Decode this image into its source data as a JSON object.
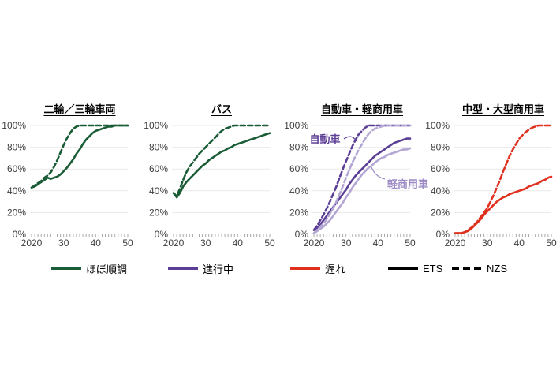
{
  "page": {
    "background": "#ffffff"
  },
  "colors": {
    "on_track_green": "#1a5c36",
    "in_progress_purple": "#5b3f96",
    "light_purple": "#b3a6d3",
    "delayed_red": "#e0301e",
    "ets_black": "#000000",
    "grid_gray": "#e9e9e9",
    "tick_gray": "#a8a8a8",
    "axis_text": "#3d3d3d"
  },
  "chart_data": [
    {
      "type": "line",
      "title": "二輪／三輪車両",
      "status": "ほぼ順調",
      "ylim": [
        0,
        100
      ],
      "grid": true,
      "y_ticks": [
        "0%",
        "20%",
        "40%",
        "60%",
        "80%",
        "100%"
      ],
      "x_ticks": [
        "2020",
        "30",
        "40",
        "50"
      ],
      "x": [
        2020,
        2021,
        2022,
        2023,
        2024,
        2025,
        2026,
        2027,
        2028,
        2029,
        2030,
        2031,
        2032,
        2033,
        2034,
        2035,
        2036,
        2037,
        2038,
        2039,
        2040,
        2041,
        2042,
        2043,
        2044,
        2045,
        2046,
        2047,
        2048,
        2049,
        2050
      ],
      "series": [
        {
          "name": "ETS",
          "style": "solid",
          "color": "#1a5c36",
          "values": [
            43,
            44,
            46,
            48,
            50,
            52,
            51,
            52,
            53,
            55,
            58,
            61,
            65,
            69,
            74,
            78,
            83,
            87,
            90,
            93,
            95,
            96,
            97,
            98,
            99,
            99,
            100,
            100,
            100,
            100,
            100
          ]
        },
        {
          "name": "NZS",
          "style": "dashed",
          "color": "#1a5c36",
          "values": [
            43,
            45,
            47,
            49,
            52,
            54,
            57,
            62,
            68,
            75,
            82,
            88,
            93,
            97,
            99,
            100,
            100,
            100,
            100,
            100,
            100,
            100,
            100,
            100,
            100,
            100,
            100,
            100,
            100,
            100,
            100
          ]
        }
      ]
    },
    {
      "type": "line",
      "title": "バス",
      "status": "ほぼ順調",
      "ylim": [
        0,
        100
      ],
      "grid": true,
      "y_ticks": [
        "0%",
        "20%",
        "40%",
        "60%",
        "80%",
        "100%"
      ],
      "x_ticks": [
        "2020",
        "30",
        "40",
        "50"
      ],
      "x": [
        2020,
        2021,
        2022,
        2023,
        2024,
        2025,
        2026,
        2027,
        2028,
        2029,
        2030,
        2031,
        2032,
        2033,
        2034,
        2035,
        2036,
        2037,
        2038,
        2039,
        2040,
        2041,
        2042,
        2043,
        2044,
        2045,
        2046,
        2047,
        2048,
        2049,
        2050
      ],
      "series": [
        {
          "name": "ETS",
          "style": "solid",
          "color": "#1a5c36",
          "values": [
            38,
            34,
            38,
            44,
            48,
            51,
            54,
            57,
            60,
            63,
            65,
            68,
            70,
            72,
            74,
            76,
            77,
            79,
            80,
            82,
            83,
            84,
            85,
            86,
            87,
            88,
            89,
            90,
            91,
            92,
            93
          ]
        },
        {
          "name": "NZS",
          "style": "dashed",
          "color": "#1a5c36",
          "values": [
            38,
            35,
            42,
            50,
            57,
            62,
            66,
            70,
            74,
            77,
            80,
            83,
            86,
            89,
            92,
            95,
            97,
            98,
            99,
            100,
            100,
            100,
            100,
            100,
            100,
            100,
            100,
            100,
            100,
            100,
            100
          ]
        }
      ]
    },
    {
      "type": "line",
      "title": "自動車・軽商用車",
      "status": "進行中",
      "ylim": [
        0,
        100
      ],
      "grid": true,
      "y_ticks": [
        "0%",
        "20%",
        "40%",
        "60%",
        "80%",
        "100%"
      ],
      "x_ticks": [
        "2020",
        "30",
        "40",
        "50"
      ],
      "x": [
        2020,
        2021,
        2022,
        2023,
        2024,
        2025,
        2026,
        2027,
        2028,
        2029,
        2030,
        2031,
        2032,
        2033,
        2034,
        2035,
        2036,
        2037,
        2038,
        2039,
        2040,
        2041,
        2042,
        2043,
        2044,
        2045,
        2046,
        2047,
        2048,
        2049,
        2050
      ],
      "series": [
        {
          "name": "自動車 ETS",
          "style": "solid",
          "color": "#5b3f96",
          "values": [
            4,
            6,
            9,
            13,
            17,
            21,
            25,
            29,
            33,
            37,
            41,
            46,
            50,
            54,
            57,
            60,
            63,
            66,
            69,
            72,
            74,
            76,
            78,
            80,
            82,
            84,
            85,
            86,
            87,
            88,
            88
          ]
        },
        {
          "name": "自動車 NZS",
          "style": "dashed",
          "color": "#5b3f96",
          "values": [
            4,
            8,
            13,
            18,
            24,
            30,
            37,
            44,
            52,
            60,
            67,
            74,
            81,
            87,
            92,
            95,
            98,
            100,
            100,
            100,
            100,
            100,
            100,
            100,
            100,
            100,
            100,
            100,
            100,
            100,
            100
          ]
        },
        {
          "name": "軽商用車 ETS",
          "style": "solid",
          "color": "#b3a6d3",
          "values": [
            1,
            3,
            5,
            7,
            10,
            13,
            17,
            21,
            25,
            29,
            34,
            38,
            43,
            47,
            51,
            55,
            58,
            61,
            63,
            66,
            68,
            70,
            71,
            73,
            74,
            75,
            76,
            77,
            78,
            78,
            79
          ]
        },
        {
          "name": "軽商用車 NZS",
          "style": "dashed",
          "color": "#b3a6d3",
          "values": [
            1,
            4,
            7,
            10,
            14,
            19,
            24,
            30,
            37,
            44,
            52,
            59,
            66,
            72,
            78,
            83,
            88,
            92,
            95,
            97,
            98,
            99,
            100,
            100,
            100,
            100,
            100,
            100,
            100,
            100,
            100
          ]
        }
      ],
      "annotations": [
        {
          "text": "自動車",
          "color": "#5b3f96"
        },
        {
          "text": "軽商用車",
          "color": "#9d8cc4"
        }
      ]
    },
    {
      "type": "line",
      "title": "中型・大型商用車",
      "status": "遅れ",
      "ylim": [
        0,
        100
      ],
      "grid": true,
      "y_ticks": [
        "0%",
        "20%",
        "40%",
        "60%",
        "80%",
        "100%"
      ],
      "x_ticks": [
        "2020",
        "30",
        "40",
        "50"
      ],
      "x": [
        2020,
        2021,
        2022,
        2023,
        2024,
        2025,
        2026,
        2027,
        2028,
        2029,
        2030,
        2031,
        2032,
        2033,
        2034,
        2035,
        2036,
        2037,
        2038,
        2039,
        2040,
        2041,
        2042,
        2043,
        2044,
        2045,
        2046,
        2047,
        2048,
        2049,
        2050
      ],
      "series": [
        {
          "name": "ETS",
          "style": "solid",
          "color": "#e0301e",
          "values": [
            1,
            1,
            1,
            2,
            3,
            5,
            8,
            11,
            14,
            18,
            21,
            24,
            27,
            30,
            32,
            34,
            35,
            37,
            38,
            39,
            40,
            41,
            42,
            44,
            45,
            46,
            47,
            49,
            50,
            52,
            53
          ]
        },
        {
          "name": "NZS",
          "style": "dashed",
          "color": "#e0301e",
          "values": [
            1,
            1,
            1,
            2,
            4,
            6,
            9,
            12,
            16,
            20,
            24,
            30,
            36,
            43,
            50,
            58,
            65,
            72,
            78,
            83,
            88,
            91,
            94,
            96,
            98,
            99,
            100,
            100,
            100,
            100,
            100
          ]
        }
      ]
    }
  ],
  "legend": {
    "items": [
      {
        "label": "ほぼ順調",
        "color": "#1a5c36",
        "style": "solid"
      },
      {
        "label": "進行中",
        "color": "#5b3f96",
        "style": "solid"
      },
      {
        "label": "遅れ",
        "color": "#e0301e",
        "style": "solid"
      },
      {
        "label": "ETS",
        "color": "#000000",
        "style": "solid"
      },
      {
        "label": "NZS",
        "color": "#000000",
        "style": "dashed"
      }
    ]
  }
}
